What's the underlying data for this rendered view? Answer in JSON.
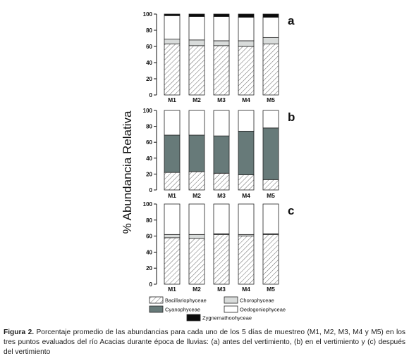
{
  "figure": {
    "ylabel": "% Abundancia Relativa",
    "caption_label": "Figura 2.",
    "caption_text": " Porcentaje promedio de las abundancias para cada uno de los 5 días de muestreo (M1, M2, M3, M4 y M5) en los tres puntos evaluados del río Acacias durante época de lluvias: (a) antes del vertimiento, (b) en el vertimiento y (c) después del vertimiento"
  },
  "colors": {
    "Bacillariophyceae": "#ffffff",
    "Chorophyceae": "#d9dcdb",
    "Cyanophyceae": "#677a79",
    "Oedogoniophyceae": "#ffffff",
    "Zygnemathoohyceae": "#0b0b0b"
  },
  "legend": [
    {
      "name": "Bacillariophyceae",
      "pattern": "hatch"
    },
    {
      "name": "Chorophyceae",
      "pattern": "solid"
    },
    {
      "name": "Cyanophyceae",
      "pattern": "solid"
    },
    {
      "name": "Oedogoniophyceae",
      "pattern": "solid"
    },
    {
      "name": "Zygnemathoohyceae",
      "pattern": "solid"
    }
  ],
  "chart_data": [
    {
      "type": "bar",
      "stacked": true,
      "panel_label": "a",
      "categories": [
        "M1",
        "M2",
        "M3",
        "M4",
        "M5"
      ],
      "ylim": [
        0,
        100
      ],
      "yticks": [
        0,
        20,
        40,
        60,
        80,
        100
      ],
      "series": [
        {
          "name": "Bacillariophyceae",
          "values": [
            63,
            61,
            61,
            60,
            63
          ]
        },
        {
          "name": "Chorophyceae",
          "values": [
            6,
            7,
            6,
            7,
            8
          ]
        },
        {
          "name": "Cyanophyceae",
          "values": [
            0,
            0,
            0,
            0,
            0
          ]
        },
        {
          "name": "Oedogoniophyceae",
          "values": [
            29,
            29,
            30,
            29,
            25
          ]
        },
        {
          "name": "Zygnemathoohyceae",
          "values": [
            2,
            3,
            3,
            4,
            4
          ]
        }
      ]
    },
    {
      "type": "bar",
      "stacked": true,
      "panel_label": "b",
      "categories": [
        "M1",
        "M2",
        "M3",
        "M4",
        "M5"
      ],
      "ylim": [
        0,
        100
      ],
      "yticks": [
        0,
        20,
        40,
        60,
        80,
        100
      ],
      "series": [
        {
          "name": "Bacillariophyceae",
          "values": [
            22,
            23,
            21,
            19,
            13
          ]
        },
        {
          "name": "Chorophyceae",
          "values": [
            0,
            0,
            0,
            0,
            0
          ]
        },
        {
          "name": "Cyanophyceae",
          "values": [
            47,
            46,
            47,
            55,
            65
          ]
        },
        {
          "name": "Oedogoniophyceae",
          "values": [
            31,
            31,
            32,
            26,
            22
          ]
        },
        {
          "name": "Zygnemathoohyceae",
          "values": [
            0,
            0,
            0,
            0,
            0
          ]
        }
      ]
    },
    {
      "type": "bar",
      "stacked": true,
      "panel_label": "c",
      "categories": [
        "M1",
        "M2",
        "M3",
        "M4",
        "M5"
      ],
      "ylim": [
        0,
        100
      ],
      "yticks": [
        0,
        20,
        40,
        60,
        80,
        100
      ],
      "series": [
        {
          "name": "Bacillariophyceae",
          "values": [
            58,
            57,
            62,
            60,
            62
          ]
        },
        {
          "name": "Chorophyceae",
          "values": [
            4,
            5,
            1,
            2,
            1
          ]
        },
        {
          "name": "Cyanophyceae",
          "values": [
            0,
            0,
            0,
            0,
            0
          ]
        },
        {
          "name": "Oedogoniophyceae",
          "values": [
            38,
            38,
            37,
            38,
            37
          ]
        },
        {
          "name": "Zygnemathoohyceae",
          "values": [
            0,
            0,
            0,
            0,
            0
          ]
        }
      ]
    }
  ]
}
